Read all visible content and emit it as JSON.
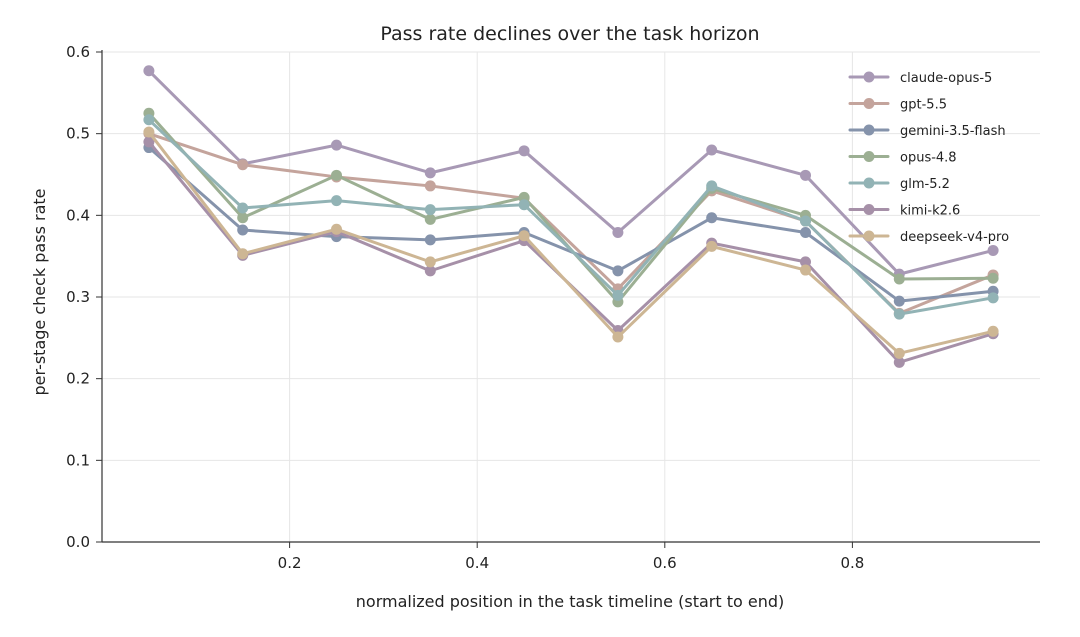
{
  "chart_data": {
    "type": "line",
    "title": "Pass rate declines over the task horizon",
    "xlabel": "normalized position in the task timeline (start to end)",
    "ylabel": "per-stage check pass rate",
    "xlim": [
      0.0,
      1.0
    ],
    "ylim": [
      0.0,
      0.6
    ],
    "xticks": [
      "0.2",
      "0.4",
      "0.6",
      "0.8"
    ],
    "yticks": [
      "0.0",
      "0.1",
      "0.2",
      "0.3",
      "0.4",
      "0.5",
      "0.6"
    ],
    "grid": true,
    "legend_position": "top-right",
    "x": [
      0.05,
      0.15,
      0.25,
      0.35,
      0.45,
      0.55,
      0.65,
      0.75,
      0.85,
      0.95
    ],
    "series": [
      {
        "name": "claude-opus-5",
        "color": "#a899b5",
        "values": [
          0.577,
          0.463,
          0.486,
          0.452,
          0.479,
          0.379,
          0.48,
          0.449,
          0.328,
          0.357
        ]
      },
      {
        "name": "gpt-5.5",
        "color": "#c4a49c",
        "values": [
          0.5,
          0.462,
          0.447,
          0.436,
          0.421,
          0.31,
          0.43,
          0.393,
          0.28,
          0.327
        ]
      },
      {
        "name": "gemini-3.5-flash",
        "color": "#8593ab",
        "values": [
          0.483,
          0.382,
          0.374,
          0.37,
          0.379,
          0.332,
          0.397,
          0.379,
          0.295,
          0.307
        ]
      },
      {
        "name": "opus-4.8",
        "color": "#9caf93",
        "values": [
          0.525,
          0.397,
          0.449,
          0.395,
          0.422,
          0.294,
          0.433,
          0.4,
          0.322,
          0.323
        ]
      },
      {
        "name": "glm-5.2",
        "color": "#92b3b5",
        "values": [
          0.517,
          0.409,
          0.418,
          0.407,
          0.413,
          0.302,
          0.436,
          0.393,
          0.279,
          0.299
        ]
      },
      {
        "name": "kimi-k2.6",
        "color": "#a690a8",
        "values": [
          0.49,
          0.351,
          0.38,
          0.332,
          0.369,
          0.259,
          0.366,
          0.343,
          0.22,
          0.255
        ]
      },
      {
        "name": "deepseek-v4-pro",
        "color": "#cdb694",
        "values": [
          0.502,
          0.353,
          0.383,
          0.343,
          0.375,
          0.251,
          0.362,
          0.333,
          0.231,
          0.258
        ]
      }
    ]
  }
}
